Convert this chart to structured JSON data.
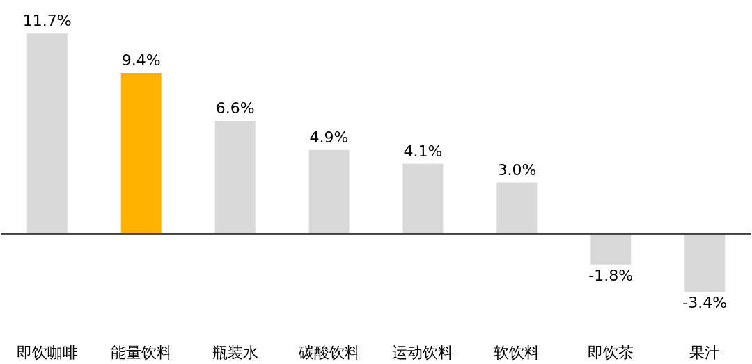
{
  "chart_data": {
    "type": "bar",
    "categories": [
      "即饮咖啡",
      "能量饮料",
      "瓶装水",
      "碳酸饮料",
      "运动饮料",
      "软饮料",
      "即饮茶",
      "果汁"
    ],
    "values": [
      11.7,
      9.4,
      6.6,
      4.9,
      4.1,
      3.0,
      -1.8,
      -3.4
    ],
    "colors": [
      "#d9d9d9",
      "#ffb300",
      "#d9d9d9",
      "#d9d9d9",
      "#d9d9d9",
      "#d9d9d9",
      "#d9d9d9",
      "#d9d9d9"
    ],
    "value_labels": [
      "11.7%",
      "9.4%",
      "6.6%",
      "4.9%",
      "4.1%",
      "3.0%",
      "-1.8%",
      "-3.4%"
    ],
    "grid": false
  }
}
